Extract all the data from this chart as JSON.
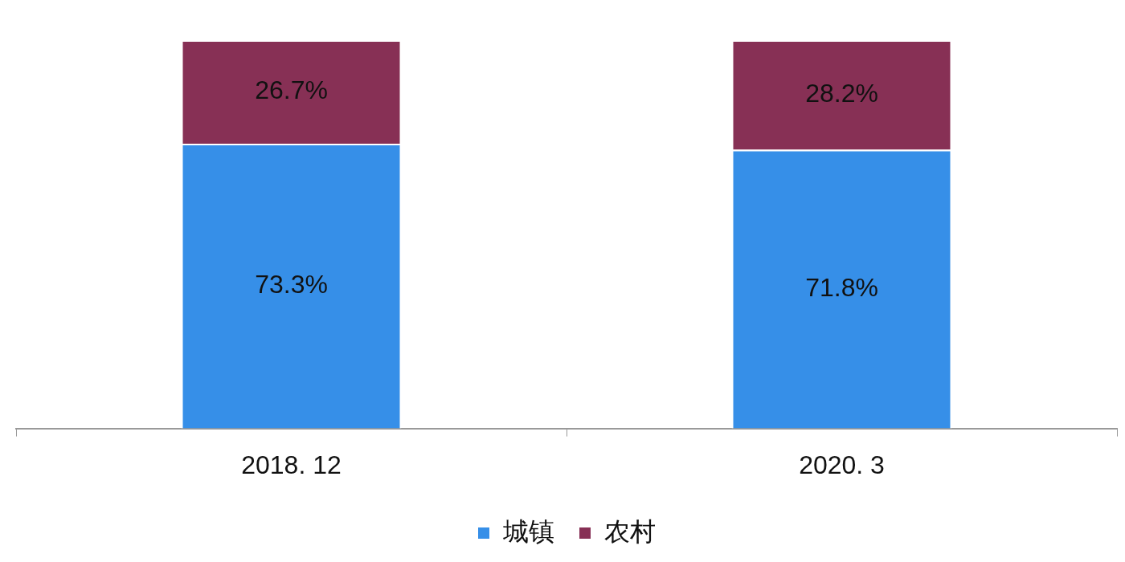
{
  "chart_data": {
    "type": "bar",
    "stacked": true,
    "categories": [
      "2018. 12",
      "2020. 3"
    ],
    "series": [
      {
        "name": "城镇",
        "color": "#368fe8",
        "values": [
          73.3,
          71.8
        ],
        "value_labels": [
          "73.3%",
          "71.8%"
        ]
      },
      {
        "name": "农村",
        "color": "#873055",
        "values": [
          26.7,
          28.2
        ],
        "value_labels": [
          "26.7%",
          "28.2%"
        ]
      }
    ],
    "ylim": [
      0,
      100
    ],
    "tick_labels": "x",
    "legend": "bottom"
  }
}
